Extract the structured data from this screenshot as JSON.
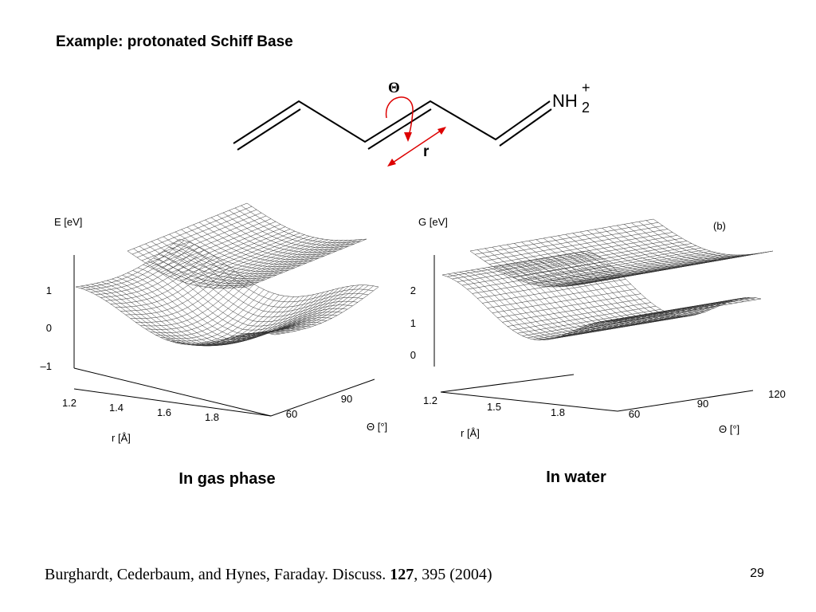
{
  "title": "Example: protonated Schiff Base",
  "molecule": {
    "theta_label": "Θ",
    "r_label": "r",
    "group": "NH",
    "subscript": "2",
    "charge": "+"
  },
  "plots": [
    {
      "z_label": "E [eV]",
      "z_ticks": [
        "1",
        "0",
        "–1"
      ],
      "r_ticks": [
        "1.2",
        "1.4",
        "1.6",
        "1.8"
      ],
      "theta_ticks": [
        "90",
        "60"
      ],
      "r_label": "r [Å]",
      "theta_label": "Θ [°]",
      "caption": "In gas phase"
    },
    {
      "z_label": "G [eV]",
      "panel": "(b)",
      "z_ticks": [
        "2",
        "1",
        "0"
      ],
      "r_ticks": [
        "1.2",
        "1.5",
        "1.8"
      ],
      "theta_ticks": [
        "120",
        "90",
        "60"
      ],
      "r_label": "r [Å]",
      "theta_label": "Θ [°]",
      "caption": "In water"
    }
  ],
  "citation": {
    "authors": "Burghardt, Cederbaum, and Hynes, Faraday. Discuss. ",
    "volume": "127",
    "rest": ", 395 (2004)"
  },
  "page_number": "29"
}
